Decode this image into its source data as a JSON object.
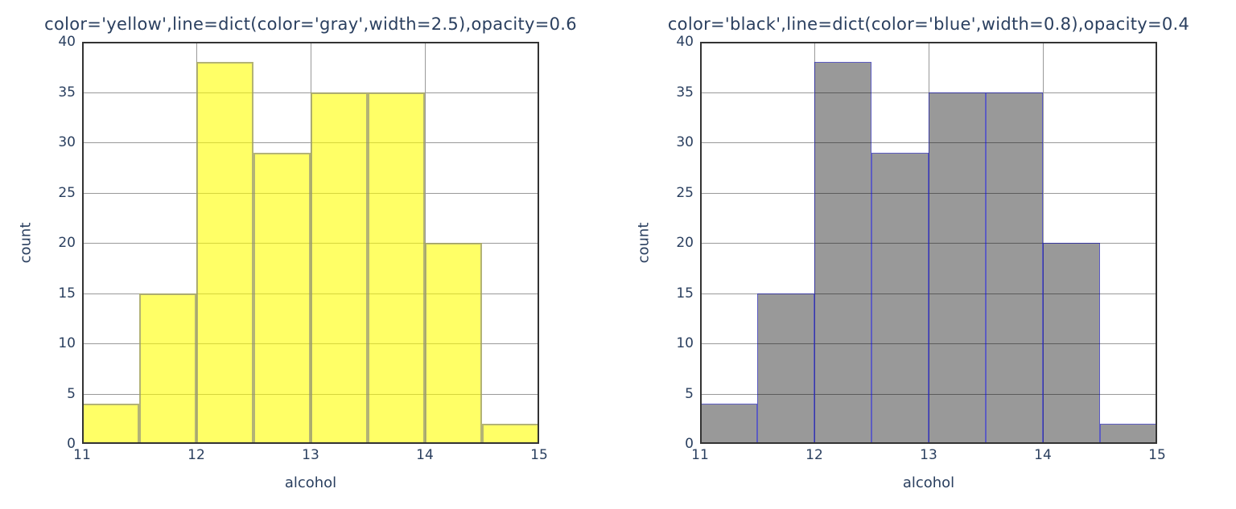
{
  "style": {
    "text_color": "#2a3f5f",
    "grid_color": "#999999",
    "frame_color": "#333333",
    "plot_background": "#ffffff",
    "paper_background": "#ffffff"
  },
  "chart_data": [
    {
      "type": "histogram",
      "title": "color='yellow',line=dict(color='gray',width=2.5),opacity=0.6",
      "xlabel": "alcohol",
      "ylabel": "count",
      "bin_start": 11,
      "bin_size": 0.5,
      "counts": [
        4,
        15,
        38,
        29,
        35,
        35,
        20,
        2
      ],
      "xticks": [
        11,
        12,
        13,
        14,
        15
      ],
      "yticks": [
        0,
        5,
        10,
        15,
        20,
        25,
        30,
        35,
        40
      ],
      "xlim": [
        11,
        15
      ],
      "ylim": [
        0,
        40
      ],
      "grid": true,
      "bar_fill": "rgba(255,255,0,0.6)",
      "bar_line_color": "rgba(128,128,128,0.6)",
      "bar_line_width": 2.5,
      "opacity": 0.6
    },
    {
      "type": "histogram",
      "title": "color='black',line=dict(color='blue',width=0.8),opacity=0.4",
      "xlabel": "alcohol",
      "ylabel": "count",
      "bin_start": 11,
      "bin_size": 0.5,
      "counts": [
        4,
        15,
        38,
        29,
        35,
        35,
        20,
        2
      ],
      "xticks": [
        11,
        12,
        13,
        14,
        15
      ],
      "yticks": [
        0,
        5,
        10,
        15,
        20,
        25,
        30,
        35,
        40
      ],
      "xlim": [
        11,
        15
      ],
      "ylim": [
        0,
        40
      ],
      "grid": true,
      "bar_fill": "rgba(0,0,0,0.4)",
      "bar_line_color": "rgba(0,0,255,0.4)",
      "bar_line_width": 1,
      "opacity": 0.4
    }
  ]
}
